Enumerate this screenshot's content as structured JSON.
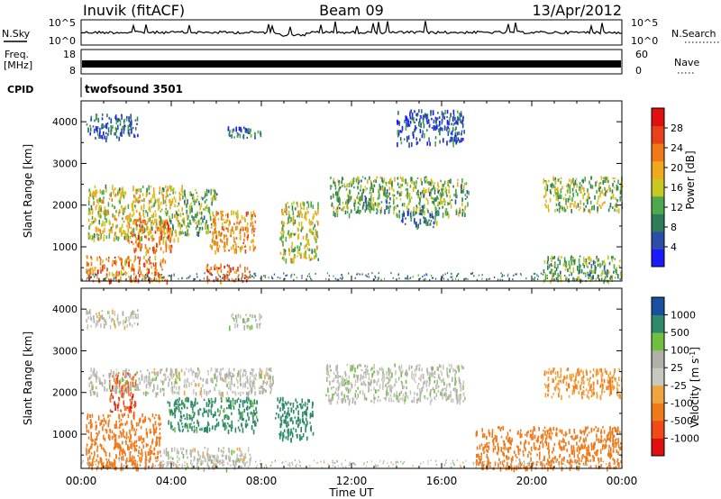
{
  "header": {
    "station": "Inuvik (fitACF)",
    "beam": "Beam 09",
    "date": "13/Apr/2012"
  },
  "nsky": {
    "label": "N.Sky",
    "ticks": [
      "10^5",
      "10^0"
    ],
    "right_label": "N.Search",
    "right_ticks": [
      "10^5",
      "10^0"
    ]
  },
  "freq": {
    "label_line1": "Freq.",
    "label_line2": "[MHz]",
    "ticks": [
      "18",
      "8"
    ],
    "right_label": "Nave",
    "right_ticks": [
      "60",
      "0"
    ]
  },
  "cpid": {
    "label": "CPID",
    "value": "twofsound 3501"
  },
  "colors": {
    "power": [
      "#1a1aff",
      "#2b4fa8",
      "#2e7d5a",
      "#4ea84e",
      "#c8c820",
      "#f2a81c",
      "#f07818",
      "#e84018",
      "#e01010"
    ],
    "velocity": [
      "#e01010",
      "#f04a18",
      "#f07a1a",
      "#f0a440",
      "#c8c8c0",
      "#b0b0a8",
      "#70c040",
      "#2e8a6a",
      "#1a50a0"
    ]
  },
  "chart_data": [
    {
      "type": "heatmap",
      "title": "Power",
      "xlabel": "Time UT",
      "ylabel": "Slant Range [km]",
      "colorbar_label": "Power [dB]",
      "colorbar_ticks": [
        4,
        8,
        12,
        16,
        20,
        24,
        28
      ],
      "colorbar_range": [
        0,
        32
      ],
      "x_ticks": [
        "00:00",
        "04:00",
        "08:00",
        "12:00",
        "16:00",
        "20:00",
        "00:00"
      ],
      "x_range_hours": [
        0,
        24
      ],
      "y_ticks": [
        1000,
        2000,
        3000,
        4000
      ],
      "y_range_km": [
        180,
        4500
      ],
      "regions": [
        {
          "t0": 0.2,
          "t1": 3.8,
          "r0": 200,
          "r1": 800,
          "power": 26
        },
        {
          "t0": 0.3,
          "t1": 4.5,
          "r0": 1200,
          "r1": 2500,
          "power": 18
        },
        {
          "t0": 2.0,
          "t1": 4.0,
          "r0": 900,
          "r1": 1700,
          "power": 26
        },
        {
          "t0": 4.5,
          "t1": 6.0,
          "r0": 1300,
          "r1": 2400,
          "power": 14
        },
        {
          "t0": 5.5,
          "t1": 7.5,
          "r0": 200,
          "r1": 600,
          "power": 28
        },
        {
          "t0": 5.7,
          "t1": 7.7,
          "r0": 900,
          "r1": 1900,
          "power": 24
        },
        {
          "t0": 8.8,
          "t1": 10.5,
          "r0": 700,
          "r1": 2100,
          "power": 18
        },
        {
          "t0": 11.0,
          "t1": 17.2,
          "r0": 1800,
          "r1": 2700,
          "power": 14
        },
        {
          "t0": 14.0,
          "t1": 15.8,
          "r0": 1500,
          "r1": 1900,
          "power": 10
        },
        {
          "t0": 20.5,
          "t1": 24.0,
          "r0": 1900,
          "r1": 2700,
          "power": 16
        },
        {
          "t0": 20.5,
          "t1": 24.0,
          "r0": 200,
          "r1": 800,
          "power": 14
        },
        {
          "t0": 0.2,
          "t1": 2.5,
          "r0": 3600,
          "r1": 4200,
          "power": 8
        },
        {
          "t0": 6.5,
          "t1": 8.0,
          "r0": 3600,
          "r1": 3900,
          "power": 8
        },
        {
          "t0": 14.0,
          "t1": 17.0,
          "r0": 3500,
          "r1": 4300,
          "power": 6
        }
      ]
    },
    {
      "type": "heatmap",
      "title": "Velocity",
      "xlabel": "Time UT",
      "ylabel": "Slant Range [km]",
      "colorbar_label": "Velocity [m s^-1]",
      "colorbar_ticks": [
        "1000",
        "500",
        "100",
        "25",
        "-25",
        "-100",
        "-500",
        "-1000"
      ],
      "x_ticks": [
        "00:00",
        "04:00",
        "08:00",
        "12:00",
        "16:00",
        "20:00",
        "00:00"
      ],
      "x_range_hours": [
        0,
        24
      ],
      "y_ticks": [
        1000,
        2000,
        3000,
        4000
      ],
      "y_range_km": [
        180,
        4500
      ],
      "regions": [
        {
          "t0": 0.2,
          "t1": 3.5,
          "r0": 200,
          "r1": 1500,
          "velocity": -300
        },
        {
          "t0": 1.2,
          "t1": 2.4,
          "r0": 1500,
          "r1": 2500,
          "velocity": -700
        },
        {
          "t0": 3.8,
          "t1": 7.8,
          "r0": 1100,
          "r1": 1900,
          "velocity": 200
        },
        {
          "t0": 3.5,
          "t1": 7.5,
          "r0": 200,
          "r1": 700,
          "velocity": 0
        },
        {
          "t0": 8.6,
          "t1": 10.3,
          "r0": 900,
          "r1": 1900,
          "velocity": 250
        },
        {
          "t0": 10.8,
          "t1": 17.0,
          "r0": 1800,
          "r1": 2700,
          "velocity": 5
        },
        {
          "t0": 0.3,
          "t1": 8.5,
          "r0": 2000,
          "r1": 2600,
          "velocity": 0
        },
        {
          "t0": 17.5,
          "t1": 24.0,
          "r0": 200,
          "r1": 1200,
          "velocity": -250
        },
        {
          "t0": 20.5,
          "t1": 24.0,
          "r0": 1900,
          "r1": 2600,
          "velocity": -80
        },
        {
          "t0": 0.2,
          "t1": 2.5,
          "r0": 3600,
          "r1": 4000,
          "velocity": 0
        },
        {
          "t0": 6.5,
          "t1": 8.0,
          "r0": 3600,
          "r1": 3900,
          "velocity": 10
        }
      ]
    }
  ],
  "axes": {
    "xlabel": "Time UT"
  }
}
